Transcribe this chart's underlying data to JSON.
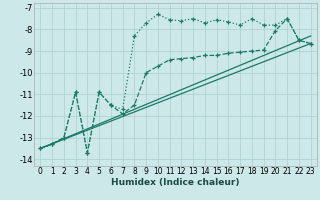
{
  "xlabel": "Humidex (Indice chaleur)",
  "bg_color": "#cce8e8",
  "grid_color": "#aacfcf",
  "line_color": "#1a7a6a",
  "xlim": [
    -0.5,
    23.5
  ],
  "ylim": [
    -14.3,
    -6.8
  ],
  "yticks": [
    -14,
    -13,
    -12,
    -11,
    -10,
    -9,
    -8,
    -7
  ],
  "xticks": [
    0,
    1,
    2,
    3,
    4,
    5,
    6,
    7,
    8,
    9,
    10,
    11,
    12,
    13,
    14,
    15,
    16,
    17,
    18,
    19,
    20,
    21,
    22,
    23
  ],
  "series": [
    {
      "x": [
        0,
        1,
        2,
        3,
        4,
        5,
        6,
        7,
        8,
        9,
        10,
        11,
        12,
        13,
        14,
        15,
        16,
        17,
        18,
        19,
        20,
        21,
        22,
        23
      ],
      "y": [
        -13.5,
        -13.3,
        -13.0,
        -10.9,
        -13.7,
        -10.9,
        -11.5,
        -11.7,
        -8.3,
        -7.7,
        -7.3,
        -7.55,
        -7.6,
        -7.5,
        -7.7,
        -7.55,
        -7.65,
        -7.8,
        -7.5,
        -7.8,
        -7.8,
        -7.5,
        -8.5,
        -8.65
      ],
      "style": "dotted",
      "marker": true
    },
    {
      "x": [
        0,
        23
      ],
      "y": [
        -13.5,
        -8.65
      ],
      "style": "solid",
      "marker": false
    },
    {
      "x": [
        0,
        23
      ],
      "y": [
        -13.5,
        -8.3
      ],
      "style": "solid",
      "marker": false
    },
    {
      "x": [
        0,
        1,
        2,
        3,
        4,
        5,
        6,
        7,
        8,
        9,
        10,
        11,
        12,
        13,
        14,
        15,
        16,
        17,
        18,
        19,
        20,
        21,
        22,
        23
      ],
      "y": [
        -13.5,
        -13.3,
        -13.0,
        -10.9,
        -13.7,
        -10.9,
        -11.5,
        -11.9,
        -11.5,
        -10.0,
        -9.7,
        -9.4,
        -9.35,
        -9.3,
        -9.2,
        -9.2,
        -9.1,
        -9.05,
        -9.0,
        -8.95,
        -8.05,
        -7.5,
        -8.5,
        -8.65
      ],
      "style": "dashed",
      "marker": true
    }
  ]
}
